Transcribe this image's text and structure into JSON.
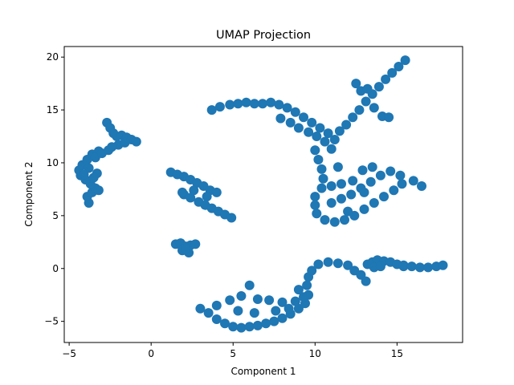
{
  "chart_data": {
    "type": "scatter",
    "title": "UMAP Projection",
    "xlabel": "Component 1",
    "ylabel": "Component 2",
    "xlim": [
      -5.3,
      19.0
    ],
    "ylim": [
      -7.0,
      21.0
    ],
    "xticks": [
      -5,
      0,
      5,
      10,
      15
    ],
    "yticks": [
      -5,
      0,
      5,
      10,
      15,
      20
    ],
    "grid": false,
    "legend": "none",
    "marker_color": "#1f77b4",
    "series": [
      {
        "values": [
          [
            -3.8,
            6.2
          ],
          [
            -3.9,
            6.8
          ],
          [
            -3.6,
            7.2
          ],
          [
            -3.4,
            7.6
          ],
          [
            -3.7,
            8.0
          ],
          [
            -4.0,
            8.4
          ],
          [
            -4.3,
            8.8
          ],
          [
            -4.4,
            9.3
          ],
          [
            -4.2,
            9.8
          ],
          [
            -3.9,
            10.3
          ],
          [
            -3.6,
            10.8
          ],
          [
            -3.2,
            11.1
          ],
          [
            -3.4,
            10.5
          ],
          [
            -3.8,
            9.5
          ],
          [
            -4.1,
            8.9
          ],
          [
            -3.3,
            9.0
          ],
          [
            -3.5,
            8.6
          ],
          [
            -3.2,
            7.4
          ],
          [
            -3.0,
            10.9
          ],
          [
            -2.6,
            11.2
          ],
          [
            -2.7,
            13.8
          ],
          [
            -2.5,
            13.3
          ],
          [
            -2.3,
            12.8
          ],
          [
            -2.1,
            12.5
          ],
          [
            -1.8,
            12.6
          ],
          [
            -1.5,
            12.4
          ],
          [
            -1.2,
            12.2
          ],
          [
            -0.9,
            12.0
          ],
          [
            -2.0,
            11.7
          ],
          [
            -2.4,
            11.5
          ],
          [
            -1.6,
            11.9
          ],
          [
            1.2,
            9.1
          ],
          [
            1.6,
            8.9
          ],
          [
            2.0,
            8.7
          ],
          [
            2.4,
            8.4
          ],
          [
            2.8,
            8.1
          ],
          [
            3.2,
            7.8
          ],
          [
            3.6,
            7.4
          ],
          [
            4.0,
            7.2
          ],
          [
            2.0,
            7.0
          ],
          [
            2.4,
            6.7
          ],
          [
            2.9,
            6.3
          ],
          [
            3.3,
            6.0
          ],
          [
            3.7,
            5.7
          ],
          [
            4.1,
            5.4
          ],
          [
            4.5,
            5.1
          ],
          [
            4.9,
            4.8
          ],
          [
            3.4,
            6.8
          ],
          [
            2.6,
            7.4
          ],
          [
            1.9,
            7.2
          ],
          [
            1.5,
            2.3
          ],
          [
            1.8,
            2.4
          ],
          [
            2.1,
            2.1
          ],
          [
            2.4,
            2.2
          ],
          [
            2.7,
            2.3
          ],
          [
            1.9,
            1.7
          ],
          [
            2.3,
            1.5
          ],
          [
            2.1,
            1.9
          ],
          [
            3.7,
            15.0
          ],
          [
            4.2,
            15.3
          ],
          [
            4.8,
            15.5
          ],
          [
            5.3,
            15.6
          ],
          [
            5.8,
            15.7
          ],
          [
            6.3,
            15.6
          ],
          [
            6.8,
            15.6
          ],
          [
            7.3,
            15.7
          ],
          [
            7.8,
            15.5
          ],
          [
            8.3,
            15.2
          ],
          [
            8.8,
            14.8
          ],
          [
            9.3,
            14.3
          ],
          [
            9.8,
            13.8
          ],
          [
            10.3,
            13.3
          ],
          [
            10.8,
            12.8
          ],
          [
            11.2,
            12.2
          ],
          [
            9.0,
            13.3
          ],
          [
            8.5,
            13.8
          ],
          [
            7.9,
            14.2
          ],
          [
            9.6,
            12.9
          ],
          [
            10.1,
            12.5
          ],
          [
            10.6,
            12.0
          ],
          [
            11.5,
            13.0
          ],
          [
            11.9,
            13.6
          ],
          [
            12.3,
            14.3
          ],
          [
            12.7,
            15.0
          ],
          [
            13.1,
            15.8
          ],
          [
            13.5,
            16.5
          ],
          [
            13.9,
            17.2
          ],
          [
            14.3,
            17.9
          ],
          [
            14.7,
            18.5
          ],
          [
            15.1,
            19.1
          ],
          [
            15.5,
            19.7
          ],
          [
            12.5,
            17.5
          ],
          [
            12.8,
            16.8
          ],
          [
            13.2,
            17.0
          ],
          [
            13.6,
            15.2
          ],
          [
            14.1,
            14.4
          ],
          [
            14.5,
            14.3
          ],
          [
            10.0,
            11.2
          ],
          [
            10.2,
            10.3
          ],
          [
            10.4,
            9.4
          ],
          [
            10.5,
            8.5
          ],
          [
            10.4,
            7.6
          ],
          [
            10.0,
            6.8
          ],
          [
            10.0,
            6.0
          ],
          [
            10.1,
            5.2
          ],
          [
            10.6,
            4.6
          ],
          [
            11.2,
            4.4
          ],
          [
            11.8,
            4.6
          ],
          [
            12.4,
            5.0
          ],
          [
            13.0,
            5.6
          ],
          [
            13.6,
            6.2
          ],
          [
            14.2,
            6.8
          ],
          [
            14.8,
            7.4
          ],
          [
            15.3,
            8.0
          ],
          [
            16.0,
            8.3
          ],
          [
            16.5,
            7.8
          ],
          [
            11.0,
            6.2
          ],
          [
            11.6,
            6.6
          ],
          [
            12.2,
            7.0
          ],
          [
            12.8,
            7.6
          ],
          [
            13.4,
            8.2
          ],
          [
            14.0,
            8.8
          ],
          [
            14.6,
            9.2
          ],
          [
            15.2,
            8.8
          ],
          [
            12.9,
            9.3
          ],
          [
            13.5,
            9.6
          ],
          [
            11.0,
            7.8
          ],
          [
            11.6,
            8.0
          ],
          [
            12.3,
            8.3
          ],
          [
            11.4,
            9.6
          ],
          [
            11.0,
            11.3
          ],
          [
            12.0,
            5.4
          ],
          [
            13.0,
            7.2
          ],
          [
            3.0,
            -3.8
          ],
          [
            3.5,
            -4.2
          ],
          [
            4.0,
            -4.8
          ],
          [
            4.5,
            -5.2
          ],
          [
            5.0,
            -5.5
          ],
          [
            5.5,
            -5.6
          ],
          [
            6.0,
            -5.5
          ],
          [
            6.5,
            -5.4
          ],
          [
            7.0,
            -5.2
          ],
          [
            7.5,
            -5.0
          ],
          [
            8.0,
            -4.7
          ],
          [
            8.5,
            -4.3
          ],
          [
            9.0,
            -3.8
          ],
          [
            9.4,
            -3.3
          ],
          [
            9.6,
            -2.5
          ],
          [
            9.5,
            -1.6
          ],
          [
            9.6,
            -0.8
          ],
          [
            9.8,
            -0.2
          ],
          [
            10.2,
            0.4
          ],
          [
            10.8,
            0.6
          ],
          [
            11.4,
            0.5
          ],
          [
            12.0,
            0.3
          ],
          [
            12.4,
            -0.2
          ],
          [
            12.8,
            -0.6
          ],
          [
            13.1,
            -1.2
          ],
          [
            4.0,
            -3.5
          ],
          [
            4.8,
            -3.0
          ],
          [
            5.5,
            -2.6
          ],
          [
            6.0,
            -1.6
          ],
          [
            6.5,
            -2.9
          ],
          [
            7.2,
            -3.0
          ],
          [
            8.0,
            -3.2
          ],
          [
            8.8,
            -3.1
          ],
          [
            9.3,
            -2.7
          ],
          [
            5.3,
            -4.0
          ],
          [
            6.3,
            -4.2
          ],
          [
            7.6,
            -4.0
          ],
          [
            8.4,
            -3.8
          ],
          [
            9.0,
            -2.0
          ],
          [
            13.2,
            0.4
          ],
          [
            13.5,
            0.6
          ],
          [
            13.8,
            0.8
          ],
          [
            14.2,
            0.7
          ],
          [
            14.6,
            0.6
          ],
          [
            15.0,
            0.4
          ],
          [
            15.4,
            0.2
          ],
          [
            13.6,
            0.1
          ],
          [
            14.0,
            0.2
          ],
          [
            15.4,
            0.3
          ],
          [
            15.9,
            0.2
          ],
          [
            16.4,
            0.1
          ],
          [
            16.9,
            0.1
          ],
          [
            17.4,
            0.2
          ],
          [
            17.8,
            0.3
          ]
        ]
      }
    ]
  }
}
